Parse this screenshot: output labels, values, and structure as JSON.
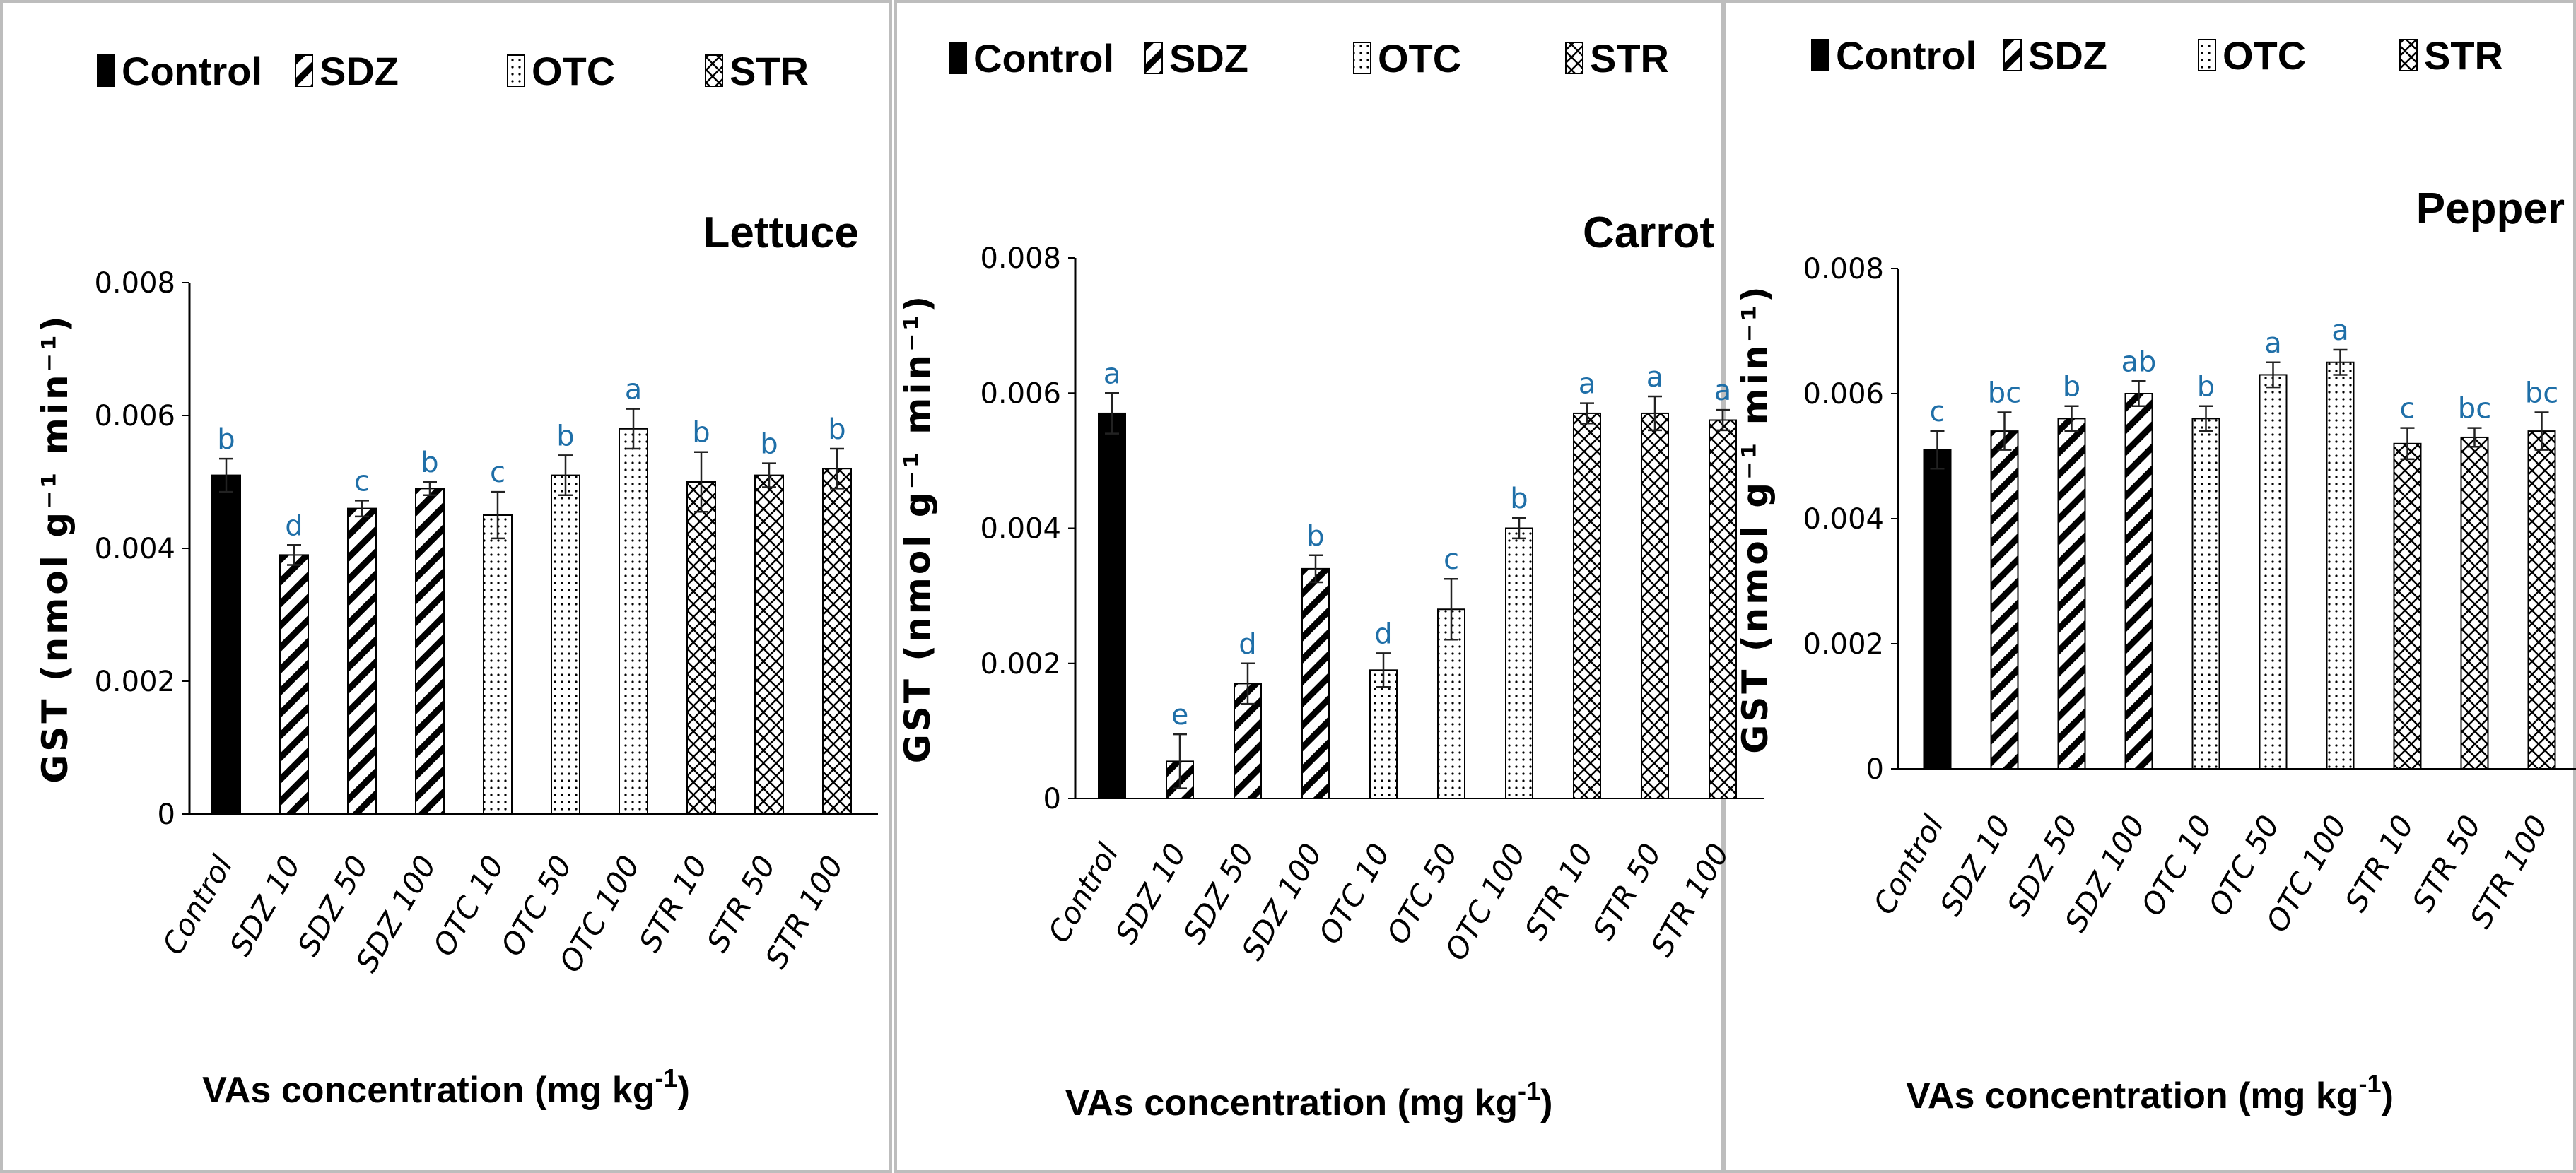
{
  "chart_data": [
    {
      "type": "bar",
      "title": "Lettuce",
      "ylabel": "GST (nmol g⁻¹ min⁻¹)",
      "xlabel": "VAs concentration (mg kg",
      "xlabel_sup": "-1",
      "xlabel_end": ")",
      "ylim": [
        0,
        0.008
      ],
      "yticks": [
        "0",
        "0.002",
        "0.004",
        "0.006",
        "0.008"
      ],
      "legend": [
        "Control",
        "SDZ",
        "OTC",
        "STR"
      ],
      "legend_placement": "top",
      "categories": [
        "Control",
        "SDZ 10",
        "SDZ 50",
        "SDZ 100",
        "OTC 10",
        "OTC 50",
        "OTC 100",
        "STR 10",
        "STR 50",
        "STR 100"
      ],
      "groups": [
        "Control",
        "SDZ",
        "SDZ",
        "SDZ",
        "OTC",
        "OTC",
        "OTC",
        "STR",
        "STR",
        "STR"
      ],
      "values": [
        0.0051,
        0.0039,
        0.0046,
        0.0049,
        0.0045,
        0.0051,
        0.0058,
        0.005,
        0.0051,
        0.0052
      ],
      "errors": [
        0.00025,
        0.00015,
        0.00012,
        0.0001,
        0.00035,
        0.0003,
        0.0003,
        0.00045,
        0.00018,
        0.0003
      ],
      "letters": [
        "b",
        "d",
        "c",
        "b",
        "c",
        "b",
        "a",
        "b",
        "b",
        "b"
      ]
    },
    {
      "type": "bar",
      "title": "Carrot",
      "ylabel": "GST (nmol g⁻¹ min⁻¹)",
      "xlabel": "VAs concentration (mg kg",
      "xlabel_sup": "-1",
      "xlabel_end": ")",
      "ylim": [
        0,
        0.008
      ],
      "yticks": [
        "0",
        "0.002",
        "0.004",
        "0.006",
        "0.008"
      ],
      "legend": [
        "Control",
        "SDZ",
        "OTC",
        "STR"
      ],
      "legend_placement": "top",
      "categories": [
        "Control",
        "SDZ 10",
        "SDZ 50",
        "SDZ 100",
        "OTC 10",
        "OTC 50",
        "OTC 100",
        "STR 10",
        "STR 50",
        "STR 100"
      ],
      "groups": [
        "Control",
        "SDZ",
        "SDZ",
        "SDZ",
        "OTC",
        "OTC",
        "OTC",
        "STR",
        "STR",
        "STR"
      ],
      "values": [
        0.0057,
        0.00055,
        0.0017,
        0.0034,
        0.0019,
        0.0028,
        0.004,
        0.0057,
        0.0057,
        0.0056
      ],
      "errors": [
        0.0003,
        0.0004,
        0.0003,
        0.0002,
        0.00025,
        0.00045,
        0.00015,
        0.00015,
        0.00025,
        0.00015
      ],
      "letters": [
        "a",
        "e",
        "d",
        "b",
        "d",
        "c",
        "b",
        "a",
        "a",
        "a"
      ]
    },
    {
      "type": "bar",
      "title": "Pepper",
      "ylabel": "GST (nmol g⁻¹ min⁻¹)",
      "xlabel": "VAs concentration (mg kg",
      "xlabel_sup": "-1",
      "xlabel_end": ")",
      "ylim": [
        0,
        0.008
      ],
      "yticks": [
        "0",
        "0.002",
        "0.004",
        "0.006",
        "0.008"
      ],
      "legend": [
        "Control",
        "SDZ",
        "OTC",
        "STR"
      ],
      "legend_placement": "top",
      "categories": [
        "Control",
        "SDZ 10",
        "SDZ 50",
        "SDZ 100",
        "OTC 10",
        "OTC 50",
        "OTC 100",
        "STR 10",
        "STR 50",
        "STR 100"
      ],
      "groups": [
        "Control",
        "SDZ",
        "SDZ",
        "SDZ",
        "OTC",
        "OTC",
        "OTC",
        "STR",
        "STR",
        "STR"
      ],
      "values": [
        0.0051,
        0.0054,
        0.0056,
        0.006,
        0.0056,
        0.0063,
        0.0065,
        0.0052,
        0.0053,
        0.0054
      ],
      "errors": [
        0.0003,
        0.0003,
        0.0002,
        0.0002,
        0.0002,
        0.0002,
        0.0002,
        0.00025,
        0.00015,
        0.0003
      ],
      "letters": [
        "c",
        "bc",
        "b",
        "ab",
        "b",
        "a",
        "a",
        "c",
        "bc",
        "bc"
      ]
    }
  ],
  "colors": {
    "ink": "#000000",
    "panel_border": "#bdbdbd",
    "letter": "#1f6fa8",
    "bar_fill": "#ffffff"
  }
}
